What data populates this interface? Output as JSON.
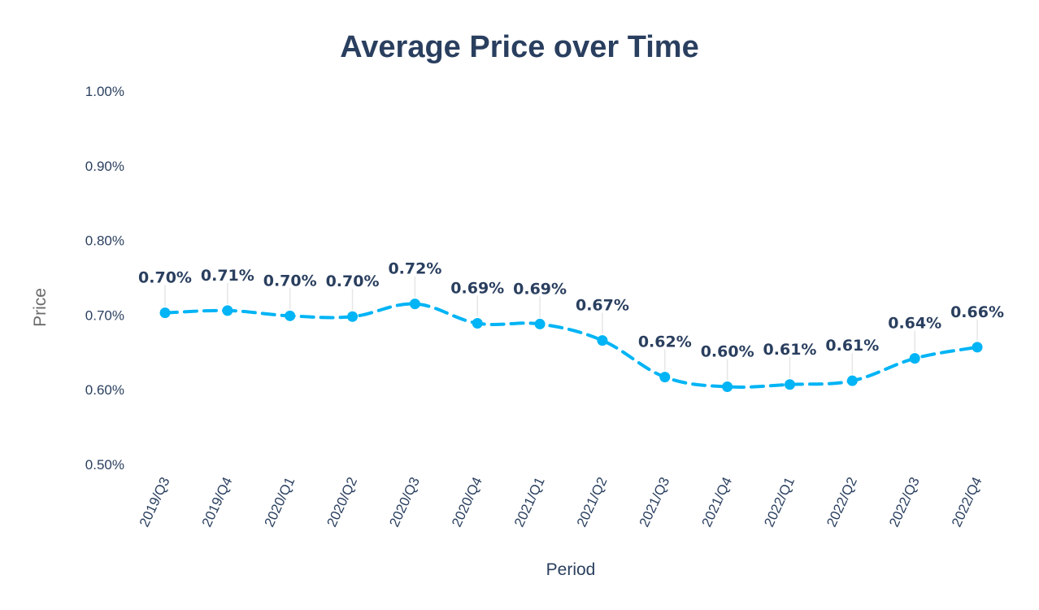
{
  "chart_data": {
    "type": "line",
    "title": "Average Price over Time",
    "xlabel": "Period",
    "ylabel": "Price",
    "categories": [
      "2019/Q3",
      "2019/Q4",
      "2020/Q1",
      "2020/Q2",
      "2020/Q3",
      "2020/Q4",
      "2021/Q1",
      "2021/Q2",
      "2021/Q3",
      "2021/Q4",
      "2022/Q1",
      "2022/Q2",
      "2022/Q3",
      "2022/Q4"
    ],
    "values": [
      0.703,
      0.706,
      0.699,
      0.698,
      0.715,
      0.689,
      0.688,
      0.666,
      0.617,
      0.604,
      0.607,
      0.612,
      0.642,
      0.657
    ],
    "data_labels": [
      "0.70%",
      "0.71%",
      "0.70%",
      "0.70%",
      "0.72%",
      "0.69%",
      "0.69%",
      "0.67%",
      "0.62%",
      "0.60%",
      "0.61%",
      "0.61%",
      "0.64%",
      "0.66%"
    ],
    "ylim": [
      0.5,
      1.0
    ],
    "yticks": [
      0.5,
      0.6,
      0.7,
      0.8,
      0.9,
      1.0
    ],
    "ytick_labels": [
      "0.50%",
      "0.60%",
      "0.70%",
      "0.80%",
      "0.90%",
      "1.00%"
    ],
    "grid": false,
    "line_style": "dashed",
    "colors": {
      "line": "#00b4f5",
      "text": "#2a3f5f",
      "axis_title_y": "#6b6b6b",
      "leader": "#e6e6e6"
    }
  }
}
